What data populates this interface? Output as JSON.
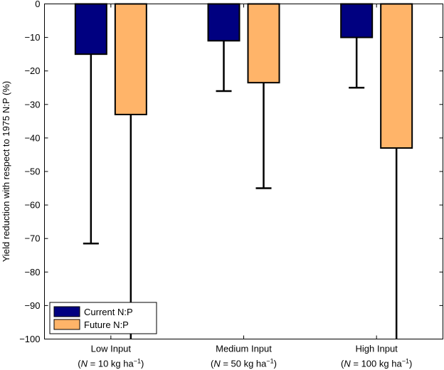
{
  "chart_data": {
    "type": "bar",
    "title": "",
    "xlabel": "",
    "ylabel": "Yield reduction with respect to 1975 N:P (%)",
    "ylim": [
      -100,
      0
    ],
    "yticks": [
      0,
      -10,
      -20,
      -30,
      -40,
      -50,
      -60,
      -70,
      -80,
      -90,
      -100
    ],
    "grid": false,
    "legend_position": "bottom-left",
    "categories": [
      "Low Input",
      "Medium Input",
      "High Input"
    ],
    "category_sublabels": [
      {
        "pre": "(",
        "var": "N",
        "mid": " = 10 kg ha",
        "sup": "−1",
        "post": ")"
      },
      {
        "pre": "(",
        "var": "N",
        "mid": " = 50 kg ha",
        "sup": "−1",
        "post": ")"
      },
      {
        "pre": "(",
        "var": "N",
        "mid": " = 100 kg ha",
        "sup": "−1",
        "post": ")"
      }
    ],
    "series": [
      {
        "name": "Current N:P",
        "color": "#000080",
        "values": [
          -15,
          -11,
          -10
        ],
        "error_lower": [
          -71.5,
          -26,
          -25
        ]
      },
      {
        "name": "Future N:P",
        "color": "#FFB469",
        "values": [
          -33,
          -23.5,
          -43
        ],
        "error_lower": [
          -100,
          -55,
          -100
        ]
      }
    ]
  }
}
